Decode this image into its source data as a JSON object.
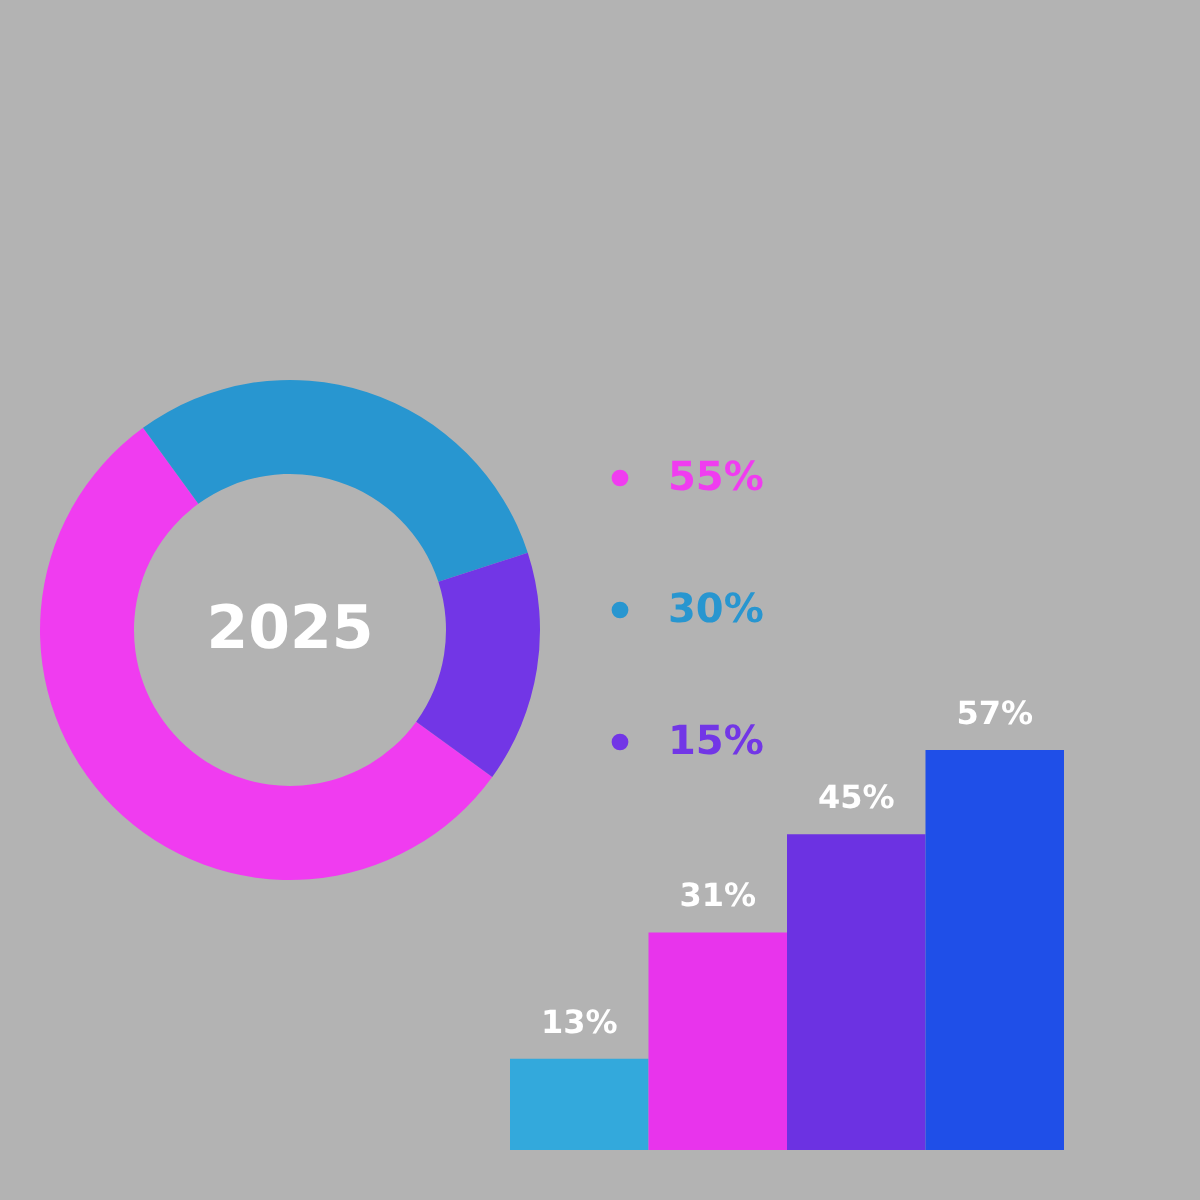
{
  "chart_data": [
    {
      "type": "donut",
      "categories": [
        "55%",
        "30%",
        "15%"
      ],
      "values": [
        55,
        30,
        15
      ],
      "colors": [
        "#f03cf0",
        "#2896d0",
        "#7236e6"
      ],
      "annotations": [
        "2025"
      ],
      "legend": "right"
    },
    {
      "type": "bar",
      "categories": [
        null,
        null,
        null,
        null
      ],
      "values": [
        13,
        31,
        45,
        57
      ],
      "colors": [
        "#33a9dc",
        "#e834ec",
        "#6c32e2",
        "#1f4fe8"
      ],
      "value_labels": [
        "13%",
        "31%",
        "45%",
        "57%"
      ],
      "tick_labels": false
    }
  ]
}
